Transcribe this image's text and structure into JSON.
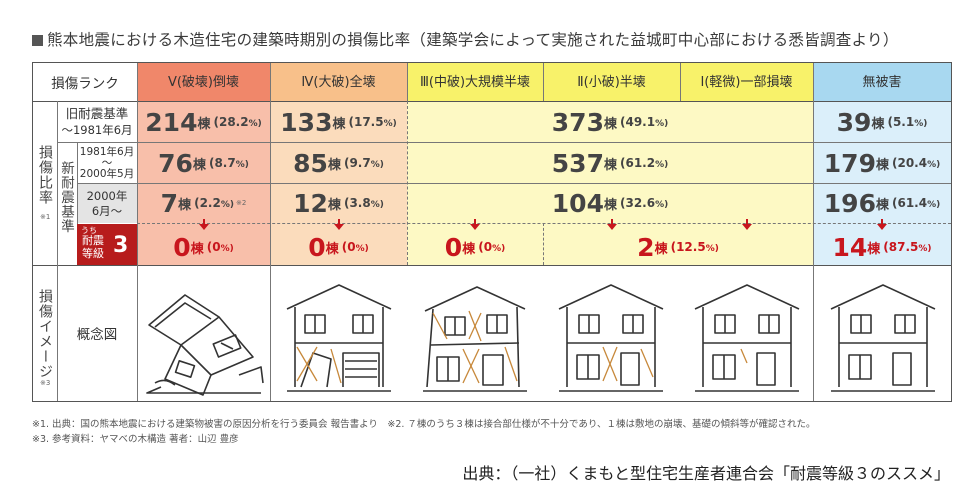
{
  "title": "熊本地震における木造住宅の建築時期別の損傷比率（建築学会によって実施された益城町中心部における悉皆調査より）",
  "colors": {
    "col1": "#f0876a",
    "col1_light": "#f8bfaa",
    "col2": "#f8c08a",
    "col2_light": "#fbdcbc",
    "col3": "#f8f26a",
    "col3_light": "#fdf9c4",
    "col6": "#a8d8f0",
    "col6_light": "#dbeffa",
    "red": "#c8161d",
    "gray": "#e4e4e4"
  },
  "header": {
    "rank_label": "損傷ランク",
    "columns": [
      {
        "line1": "Ⅴ(破壊)",
        "line2": "倒壊"
      },
      {
        "line1": "Ⅳ(大破)",
        "line2": "全壊"
      },
      {
        "line1": "Ⅲ(中破)",
        "line2": "大規模半壊"
      },
      {
        "line1": "Ⅱ(小破)",
        "line2": "半壊"
      },
      {
        "line1": "Ⅰ(軽微)",
        "line2": "一部損壊"
      },
      {
        "line1": "無被害",
        "line2": ""
      }
    ]
  },
  "side": {
    "damage_ratio": "損傷比率",
    "damage_ratio_note": "※1",
    "new_standard": "新耐震基準",
    "damage_image": "損傷イメージ",
    "damage_image_note": "※3",
    "concept_label": "概念図"
  },
  "rows": {
    "old": {
      "label1": "旧耐震基準",
      "label2": "～1981年6月",
      "c1": {
        "num": "214",
        "unit": "棟",
        "pct": "(28.2",
        "pctsign": "%)"
      },
      "c2": {
        "num": "133",
        "unit": "棟",
        "pct": "(17.5",
        "pctsign": "%)"
      },
      "c345": {
        "num": "373",
        "unit": "棟",
        "pct": "(49.1",
        "pctsign": "%)"
      },
      "c6": {
        "num": "39",
        "unit": "棟",
        "pct": "(5.1",
        "pctsign": "%)"
      }
    },
    "mid": {
      "label1": "1981年6月",
      "label_tilde": "～",
      "label2": "2000年5月",
      "c1": {
        "num": "76",
        "unit": "棟",
        "pct": "(8.7",
        "pctsign": "%)"
      },
      "c2": {
        "num": "85",
        "unit": "棟",
        "pct": "(9.7",
        "pctsign": "%)"
      },
      "c345": {
        "num": "537",
        "unit": "棟",
        "pct": "(61.2",
        "pctsign": "%)"
      },
      "c6": {
        "num": "179",
        "unit": "棟",
        "pct": "(20.4",
        "pctsign": "%)"
      }
    },
    "new": {
      "label1": "2000年",
      "label2": "6月～",
      "c1": {
        "num": "7",
        "unit": "棟",
        "pct": "(2.2",
        "pctsign": "%)",
        "note": "※2"
      },
      "c2": {
        "num": "12",
        "unit": "棟",
        "pct": "(3.8",
        "pctsign": "%)"
      },
      "c345": {
        "num": "104",
        "unit": "棟",
        "pct": "(32.6",
        "pctsign": "%)"
      },
      "c6": {
        "num": "196",
        "unit": "棟",
        "pct": "(61.4",
        "pctsign": "%)"
      }
    },
    "grade3": {
      "badge_small": "うち",
      "badge_line1": "耐震",
      "badge_line2": "等級",
      "badge_num": "3",
      "c1": {
        "num": "0",
        "unit": "棟",
        "pct": "(0",
        "pctsign": "%)"
      },
      "c2": {
        "num": "0",
        "unit": "棟",
        "pct": "(0",
        "pctsign": "%)"
      },
      "c3": {
        "num": "0",
        "unit": "棟",
        "pct": "(0",
        "pctsign": "%)"
      },
      "c45": {
        "num": "2",
        "unit": "棟",
        "pct": "(12.5",
        "pctsign": "%)"
      },
      "c6": {
        "num": "14",
        "unit": "棟",
        "pct": "(87.5",
        "pctsign": "%)"
      }
    }
  },
  "footnotes": {
    "line1": "※1. 出典：国の熊本地震における建築物被害の原因分析を行う委員会 報告書より　※2. ７棟のうち３棟は接合部仕様が不十分であり、１棟は敷地の崩壊、基礎の傾斜等が確認された。",
    "line2": "※3. 参考資料：ヤマベの木構造 著者：山辺 豊彦"
  },
  "source": "出典：（一社）くまもと型住宅生産者連合会「耐震等級３のススメ」"
}
